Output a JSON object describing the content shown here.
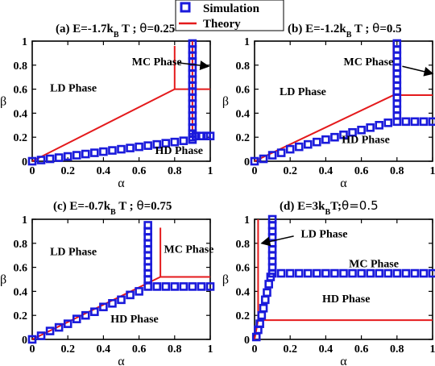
{
  "legend": {
    "simulation_label": "Simulation",
    "theory_label": "Theory"
  },
  "colors": {
    "simulation": "#1a1adb",
    "theory": "#e41a1c"
  },
  "chart_data": [
    {
      "type": "scatter",
      "title_parts": [
        {
          "t": "(a) E=-1.7k"
        },
        {
          "t": "B",
          "sub": true
        },
        {
          "t": " T ; "
        },
        {
          "t": "θ",
          "greek": true
        },
        {
          "t": "=0.25"
        }
      ],
      "xlabel": "α",
      "ylabel": "β",
      "xlim": [
        0,
        1
      ],
      "ylim": [
        0,
        1
      ],
      "xticks": [
        "0",
        "0.2",
        "0.4",
        "0.6",
        "0.8",
        "1"
      ],
      "yticks": [
        "0",
        "0.2",
        "0.4",
        "0.6",
        "0.8",
        "1"
      ],
      "series": [
        {
          "kind": "simulation",
          "points": [
            [
              0.0,
              0.0
            ],
            [
              0.05,
              0.01
            ],
            [
              0.1,
              0.02
            ],
            [
              0.15,
              0.03
            ],
            [
              0.2,
              0.04
            ],
            [
              0.25,
              0.05
            ],
            [
              0.3,
              0.06
            ],
            [
              0.35,
              0.07
            ],
            [
              0.4,
              0.08
            ],
            [
              0.45,
              0.09
            ],
            [
              0.5,
              0.1
            ],
            [
              0.55,
              0.11
            ],
            [
              0.6,
              0.12
            ],
            [
              0.65,
              0.13
            ],
            [
              0.7,
              0.14
            ],
            [
              0.75,
              0.15
            ],
            [
              0.8,
              0.16
            ],
            [
              0.85,
              0.17
            ],
            [
              0.9,
              0.18
            ],
            [
              0.9,
              0.23
            ],
            [
              0.9,
              0.28
            ],
            [
              0.9,
              0.33
            ],
            [
              0.9,
              0.38
            ],
            [
              0.9,
              0.43
            ],
            [
              0.9,
              0.48
            ],
            [
              0.9,
              0.53
            ],
            [
              0.9,
              0.58
            ],
            [
              0.9,
              0.63
            ],
            [
              0.9,
              0.68
            ],
            [
              0.9,
              0.73
            ],
            [
              0.9,
              0.78
            ],
            [
              0.9,
              0.83
            ],
            [
              0.9,
              0.88
            ],
            [
              0.9,
              0.93
            ],
            [
              0.9,
              0.98
            ],
            [
              0.9,
              0.2
            ],
            [
              0.92,
              0.21
            ],
            [
              0.95,
              0.21
            ],
            [
              0.98,
              0.21
            ],
            [
              1.0,
              0.21
            ]
          ]
        },
        {
          "kind": "theory",
          "segments": [
            [
              [
                0,
                0
              ],
              [
                0.8,
                0.6
              ]
            ],
            [
              [
                0.8,
                0.6
              ],
              [
                0.8,
                0.96
              ]
            ],
            [
              [
                0.8,
                0.6
              ],
              [
                1.0,
                0.6
              ]
            ],
            [
              [
                0.9,
                0.2
              ],
              [
                0.9,
                1.0
              ]
            ]
          ]
        }
      ],
      "annotations": [
        {
          "text": "LD Phase",
          "x": 0.1,
          "y": 0.58
        },
        {
          "text": "MC Phase",
          "x": 0.56,
          "y": 0.8
        },
        {
          "text": "HD Phase",
          "x": 0.69,
          "y": 0.06
        }
      ],
      "arrows": [
        {
          "from": [
            0.82,
            0.82
          ],
          "to": [
            0.99,
            0.79
          ]
        }
      ]
    },
    {
      "type": "scatter",
      "title_parts": [
        {
          "t": "(b) E=-1.2k"
        },
        {
          "t": "B",
          "sub": true
        },
        {
          "t": " T ; "
        },
        {
          "t": "θ",
          "greek": true
        },
        {
          "t": "=0.5"
        }
      ],
      "xlabel": "α",
      "ylabel": "β",
      "xlim": [
        0,
        1
      ],
      "ylim": [
        0,
        1
      ],
      "xticks": [
        "0",
        "0.2",
        "0.4",
        "0.6",
        "0.8",
        "1"
      ],
      "yticks": [
        "0",
        "0.2",
        "0.4",
        "0.6",
        "0.8",
        "1"
      ],
      "series": [
        {
          "kind": "simulation",
          "points": [
            [
              0.0,
              0.0
            ],
            [
              0.05,
              0.02
            ],
            [
              0.1,
              0.05
            ],
            [
              0.15,
              0.07
            ],
            [
              0.2,
              0.1
            ],
            [
              0.25,
              0.12
            ],
            [
              0.3,
              0.14
            ],
            [
              0.35,
              0.16
            ],
            [
              0.4,
              0.18
            ],
            [
              0.45,
              0.2
            ],
            [
              0.5,
              0.22
            ],
            [
              0.55,
              0.24
            ],
            [
              0.6,
              0.26
            ],
            [
              0.65,
              0.28
            ],
            [
              0.7,
              0.3
            ],
            [
              0.75,
              0.32
            ],
            [
              0.8,
              0.38
            ],
            [
              0.8,
              0.43
            ],
            [
              0.8,
              0.48
            ],
            [
              0.8,
              0.53
            ],
            [
              0.8,
              0.58
            ],
            [
              0.8,
              0.63
            ],
            [
              0.8,
              0.68
            ],
            [
              0.8,
              0.73
            ],
            [
              0.8,
              0.78
            ],
            [
              0.8,
              0.83
            ],
            [
              0.8,
              0.88
            ],
            [
              0.8,
              0.93
            ],
            [
              0.8,
              0.98
            ],
            [
              0.8,
              0.33
            ],
            [
              0.85,
              0.33
            ],
            [
              0.9,
              0.33
            ],
            [
              0.95,
              0.33
            ],
            [
              1.0,
              0.33
            ]
          ]
        },
        {
          "kind": "theory",
          "segments": [
            [
              [
                0,
                0
              ],
              [
                0.78,
                0.55
              ]
            ],
            [
              [
                0.78,
                0.55
              ],
              [
                1.0,
                0.55
              ]
            ],
            [
              [
                0.78,
                0.55
              ],
              [
                0.78,
                1.0
              ]
            ]
          ]
        }
      ],
      "annotations": [
        {
          "text": "LD Phase",
          "x": 0.14,
          "y": 0.55
        },
        {
          "text": "MC Phase",
          "x": 0.5,
          "y": 0.8
        },
        {
          "text": "HD Phase",
          "x": 0.49,
          "y": 0.15
        }
      ],
      "arrows": [
        {
          "from": [
            0.83,
            0.79
          ],
          "to": [
            1.0,
            0.73
          ]
        }
      ]
    },
    {
      "type": "scatter",
      "title_parts": [
        {
          "t": "(c) E=-0.7k"
        },
        {
          "t": "B",
          "sub": true
        },
        {
          "t": " T ; "
        },
        {
          "t": "θ",
          "greek": true
        },
        {
          "t": "=0.75"
        }
      ],
      "xlabel": "α",
      "ylabel": "β",
      "xlim": [
        0,
        1
      ],
      "ylim": [
        0,
        1
      ],
      "xticks": [
        "0",
        "0.2",
        "0.4",
        "0.6",
        "0.8",
        "1"
      ],
      "yticks": [
        "0",
        "0.2",
        "0.4",
        "0.6",
        "0.8",
        "1"
      ],
      "series": [
        {
          "kind": "simulation",
          "points": [
            [
              0.0,
              0.0
            ],
            [
              0.05,
              0.03
            ],
            [
              0.1,
              0.07
            ],
            [
              0.15,
              0.1
            ],
            [
              0.2,
              0.13
            ],
            [
              0.25,
              0.17
            ],
            [
              0.3,
              0.2
            ],
            [
              0.35,
              0.23
            ],
            [
              0.4,
              0.27
            ],
            [
              0.45,
              0.3
            ],
            [
              0.5,
              0.33
            ],
            [
              0.55,
              0.37
            ],
            [
              0.6,
              0.4
            ],
            [
              0.65,
              0.5
            ],
            [
              0.65,
              0.55
            ],
            [
              0.65,
              0.6
            ],
            [
              0.65,
              0.65
            ],
            [
              0.65,
              0.7
            ],
            [
              0.65,
              0.75
            ],
            [
              0.65,
              0.8
            ],
            [
              0.65,
              0.85
            ],
            [
              0.65,
              0.9
            ],
            [
              0.65,
              0.95
            ],
            [
              0.65,
              0.44
            ],
            [
              0.7,
              0.44
            ],
            [
              0.75,
              0.44
            ],
            [
              0.8,
              0.44
            ],
            [
              0.85,
              0.44
            ],
            [
              0.9,
              0.44
            ],
            [
              0.95,
              0.44
            ],
            [
              1.0,
              0.44
            ]
          ]
        },
        {
          "kind": "theory",
          "segments": [
            [
              [
                0,
                0
              ],
              [
                0.72,
                0.52
              ]
            ],
            [
              [
                0.72,
                0.52
              ],
              [
                1.0,
                0.52
              ]
            ],
            [
              [
                0.72,
                0.52
              ],
              [
                0.72,
                0.93
              ]
            ]
          ]
        }
      ],
      "annotations": [
        {
          "text": "LD Phase",
          "x": 0.1,
          "y": 0.7
        },
        {
          "text": "MC Phase",
          "x": 0.74,
          "y": 0.72
        },
        {
          "text": "HD Phase",
          "x": 0.44,
          "y": 0.14
        }
      ],
      "arrows": []
    },
    {
      "type": "scatter",
      "title_parts": [
        {
          "t": "(d) E=3k"
        },
        {
          "t": "B",
          "sub": true
        },
        {
          "t": "T;"
        },
        {
          "t": "θ=0.5",
          "greek": true
        }
      ],
      "xlabel": "α",
      "ylabel": "β",
      "xlim": [
        0,
        1
      ],
      "ylim": [
        0,
        1
      ],
      "xticks": [
        "0",
        "0.2",
        "0.4",
        "0.6",
        "0.8",
        "1"
      ],
      "yticks": [
        "0",
        "0.2",
        "0.4",
        "0.6",
        "0.8",
        "1"
      ],
      "series": [
        {
          "kind": "simulation",
          "points": [
            [
              0.01,
              0.02
            ],
            [
              0.02,
              0.08
            ],
            [
              0.03,
              0.13
            ],
            [
              0.04,
              0.2
            ],
            [
              0.05,
              0.26
            ],
            [
              0.06,
              0.33
            ],
            [
              0.07,
              0.39
            ],
            [
              0.08,
              0.46
            ],
            [
              0.09,
              0.52
            ],
            [
              0.1,
              0.6
            ],
            [
              0.1,
              0.65
            ],
            [
              0.1,
              0.7
            ],
            [
              0.1,
              0.75
            ],
            [
              0.1,
              0.8
            ],
            [
              0.1,
              0.85
            ],
            [
              0.1,
              0.9
            ],
            [
              0.1,
              0.95
            ],
            [
              0.1,
              1.0
            ],
            [
              0.1,
              0.55
            ],
            [
              0.15,
              0.55
            ],
            [
              0.2,
              0.55
            ],
            [
              0.25,
              0.55
            ],
            [
              0.3,
              0.55
            ],
            [
              0.35,
              0.55
            ],
            [
              0.4,
              0.55
            ],
            [
              0.45,
              0.55
            ],
            [
              0.5,
              0.55
            ],
            [
              0.55,
              0.55
            ],
            [
              0.6,
              0.55
            ],
            [
              0.65,
              0.55
            ],
            [
              0.7,
              0.55
            ],
            [
              0.75,
              0.55
            ],
            [
              0.8,
              0.55
            ],
            [
              0.85,
              0.55
            ],
            [
              0.9,
              0.55
            ],
            [
              0.95,
              0.55
            ],
            [
              1.0,
              0.55
            ]
          ]
        },
        {
          "kind": "theory",
          "segments": [
            [
              [
                0,
                0
              ],
              [
                0.02,
                0.16
              ]
            ],
            [
              [
                0.02,
                0.16
              ],
              [
                1.0,
                0.16
              ]
            ],
            [
              [
                0.02,
                0.16
              ],
              [
                0.02,
                1.0
              ]
            ]
          ]
        }
      ],
      "annotations": [
        {
          "text": "LD Phase",
          "x": 0.26,
          "y": 0.85
        },
        {
          "text": "MC Phase",
          "x": 0.53,
          "y": 0.6
        },
        {
          "text": "HD Phase",
          "x": 0.38,
          "y": 0.31
        }
      ],
      "arrows": [
        {
          "from": [
            0.22,
            0.86
          ],
          "to": [
            0.04,
            0.8
          ]
        }
      ]
    }
  ]
}
